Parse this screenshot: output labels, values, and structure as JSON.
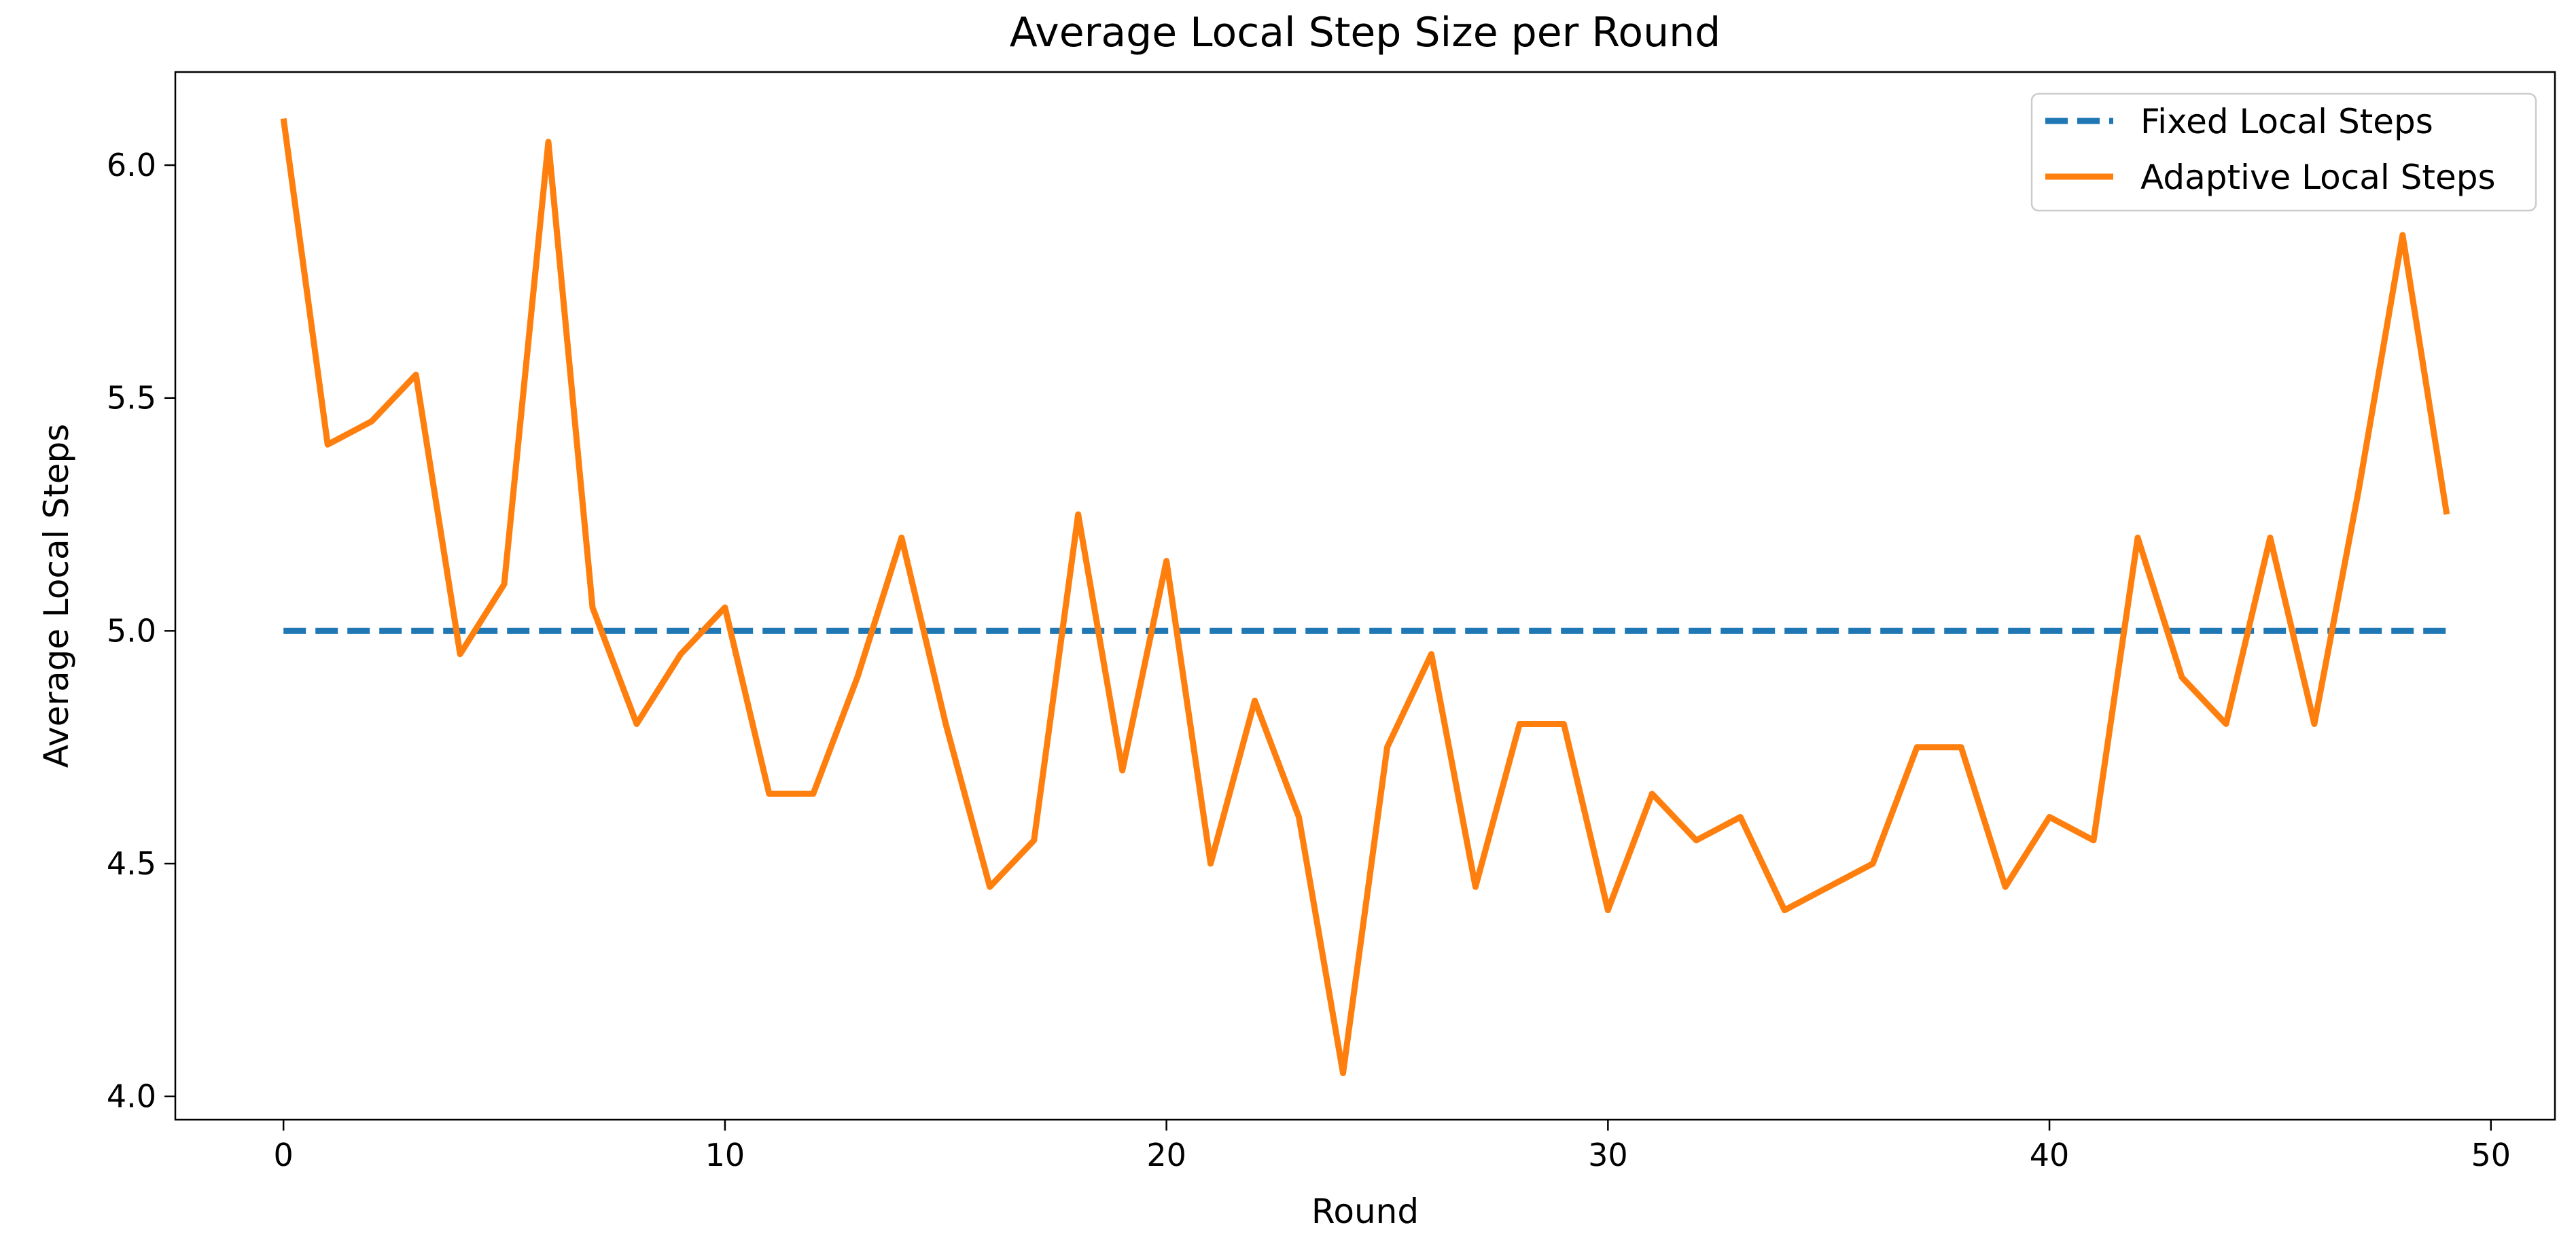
{
  "chart_data": {
    "type": "line",
    "title": "Average Local Step Size per Round",
    "xlabel": "Round",
    "ylabel": "Average Local Steps",
    "xlim": [
      -2.45,
      51.45
    ],
    "ylim": [
      3.95,
      6.2
    ],
    "xticks": [
      0,
      10,
      20,
      30,
      40,
      50
    ],
    "xtick_labels": [
      "0",
      "10",
      "20",
      "30",
      "40",
      "50"
    ],
    "yticks": [
      4.0,
      4.5,
      5.0,
      5.5,
      6.0
    ],
    "ytick_labels": [
      "4.0",
      "4.5",
      "5.0",
      "5.5",
      "6.0"
    ],
    "grid": false,
    "legend_position": "top-right",
    "x": [
      0,
      1,
      2,
      3,
      4,
      5,
      6,
      7,
      8,
      9,
      10,
      11,
      12,
      13,
      14,
      15,
      16,
      17,
      18,
      19,
      20,
      21,
      22,
      23,
      24,
      25,
      26,
      27,
      28,
      29,
      30,
      31,
      32,
      33,
      34,
      35,
      36,
      37,
      38,
      39,
      40,
      41,
      42,
      43,
      44,
      45,
      46,
      47,
      48,
      49
    ],
    "series": [
      {
        "name": "Fixed Local Steps",
        "color": "#1f77b4",
        "style": "dashed",
        "values": [
          5.0,
          5.0,
          5.0,
          5.0,
          5.0,
          5.0,
          5.0,
          5.0,
          5.0,
          5.0,
          5.0,
          5.0,
          5.0,
          5.0,
          5.0,
          5.0,
          5.0,
          5.0,
          5.0,
          5.0,
          5.0,
          5.0,
          5.0,
          5.0,
          5.0,
          5.0,
          5.0,
          5.0,
          5.0,
          5.0,
          5.0,
          5.0,
          5.0,
          5.0,
          5.0,
          5.0,
          5.0,
          5.0,
          5.0,
          5.0,
          5.0,
          5.0,
          5.0,
          5.0,
          5.0,
          5.0,
          5.0,
          5.0,
          5.0,
          5.0
        ]
      },
      {
        "name": "Adaptive Local Steps",
        "color": "#ff7f0e",
        "style": "solid",
        "values": [
          6.1,
          5.4,
          5.45,
          5.55,
          4.95,
          5.1,
          6.05,
          5.05,
          4.8,
          4.95,
          5.05,
          4.65,
          4.65,
          4.9,
          5.2,
          4.8,
          4.45,
          4.55,
          5.25,
          4.7,
          5.15,
          4.5,
          4.85,
          4.6,
          4.05,
          4.75,
          4.95,
          4.45,
          4.8,
          4.8,
          4.4,
          4.65,
          4.55,
          4.6,
          4.4,
          4.45,
          4.5,
          4.75,
          4.75,
          4.45,
          4.6,
          4.55,
          5.2,
          4.9,
          4.8,
          5.2,
          4.8,
          5.3,
          5.85,
          5.25
        ]
      }
    ]
  }
}
